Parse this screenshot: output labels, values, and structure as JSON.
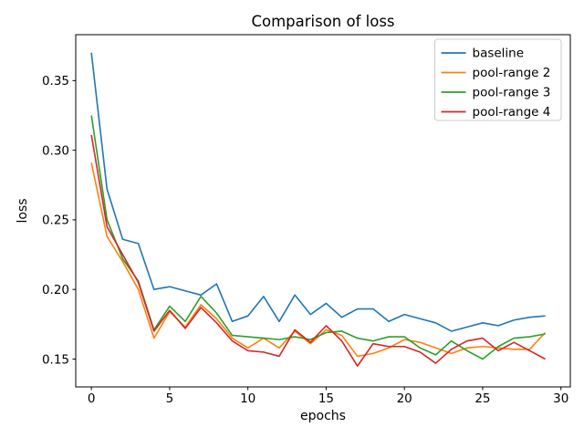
{
  "chart_data": {
    "type": "line",
    "title": "Comparison of loss",
    "xlabel": "epochs",
    "ylabel": "loss",
    "grid": false,
    "legend_position": "upper right",
    "xlim": [
      -1.0,
      30.6
    ],
    "ylim": [
      0.13,
      0.383
    ],
    "xticks": [
      {
        "value": 0,
        "label": "0"
      },
      {
        "value": 5,
        "label": "5"
      },
      {
        "value": 10,
        "label": "10"
      },
      {
        "value": 15,
        "label": "15"
      },
      {
        "value": 20,
        "label": "20"
      },
      {
        "value": 25,
        "label": "25"
      },
      {
        "value": 30,
        "label": "30"
      }
    ],
    "yticks": [
      {
        "value": 0.15,
        "label": "0.15"
      },
      {
        "value": 0.2,
        "label": "0.20"
      },
      {
        "value": 0.25,
        "label": "0.25"
      },
      {
        "value": 0.3,
        "label": "0.30"
      },
      {
        "value": 0.35,
        "label": "0.35"
      }
    ],
    "x": [
      0,
      1,
      2,
      3,
      4,
      5,
      6,
      7,
      8,
      9,
      10,
      11,
      12,
      13,
      14,
      15,
      16,
      17,
      18,
      19,
      20,
      21,
      22,
      23,
      24,
      25,
      26,
      27,
      28,
      29
    ],
    "series": [
      {
        "name": "baseline",
        "color": "#1f77b4",
        "values": [
          0.37,
          0.272,
          0.236,
          0.233,
          0.2,
          0.202,
          0.199,
          0.196,
          0.204,
          0.177,
          0.181,
          0.195,
          0.177,
          0.196,
          0.182,
          0.19,
          0.18,
          0.186,
          0.186,
          0.177,
          0.182,
          0.179,
          0.176,
          0.17,
          0.173,
          0.176,
          0.174,
          0.178,
          0.18,
          0.181
        ]
      },
      {
        "name": "pool-range 2",
        "color": "#ff7f0e",
        "values": [
          0.291,
          0.238,
          0.22,
          0.2,
          0.165,
          0.184,
          0.173,
          0.189,
          0.179,
          0.165,
          0.158,
          0.165,
          0.158,
          0.17,
          0.161,
          0.171,
          0.167,
          0.152,
          0.154,
          0.158,
          0.164,
          0.162,
          0.158,
          0.154,
          0.158,
          0.159,
          0.158,
          0.157,
          0.157,
          0.169
        ]
      },
      {
        "name": "pool-range 3",
        "color": "#2ca02c",
        "values": [
          0.325,
          0.25,
          0.222,
          0.206,
          0.171,
          0.188,
          0.177,
          0.195,
          0.183,
          0.167,
          0.166,
          0.165,
          0.164,
          0.166,
          0.164,
          0.169,
          0.17,
          0.165,
          0.163,
          0.166,
          0.166,
          0.158,
          0.153,
          0.163,
          0.156,
          0.15,
          0.159,
          0.165,
          0.166,
          0.168
        ]
      },
      {
        "name": "pool-range 4",
        "color": "#d62728",
        "values": [
          0.311,
          0.245,
          0.225,
          0.205,
          0.17,
          0.185,
          0.172,
          0.187,
          0.176,
          0.163,
          0.156,
          0.155,
          0.152,
          0.171,
          0.162,
          0.174,
          0.163,
          0.145,
          0.161,
          0.159,
          0.159,
          0.155,
          0.147,
          0.157,
          0.163,
          0.165,
          0.156,
          0.162,
          0.156,
          0.15
        ]
      }
    ]
  }
}
